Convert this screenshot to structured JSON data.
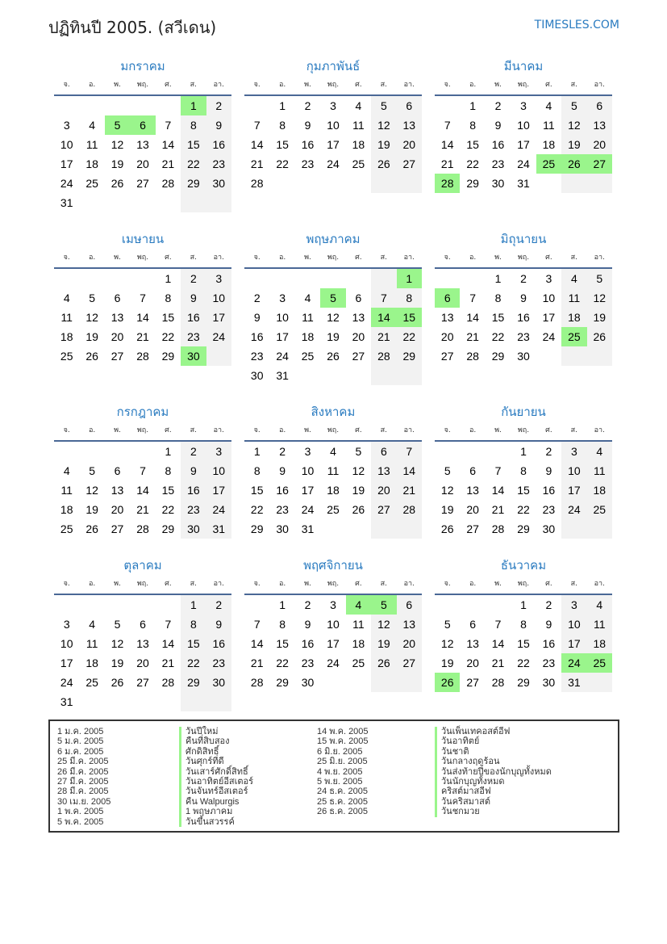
{
  "header": {
    "title": "ปฏิทินปี 2005. (สวีเดน)",
    "brand": "TIMESLES.COM"
  },
  "year": 2005,
  "weekdays": [
    "จ.",
    "อ.",
    "พ.",
    "พฤ.",
    "ศ.",
    "ส.",
    "อา."
  ],
  "months": [
    "มกราคม",
    "กุมภาพันธ์",
    "มีนาคม",
    "เมษายน",
    "พฤษภาคม",
    "มิถุนายน",
    "กรกฎาคม",
    "สิงหาคม",
    "กันยายน",
    "ตุลาคม",
    "พฤศจิกายน",
    "ธันวาคม"
  ],
  "colors": {
    "accent": "#2a7bc0",
    "holiday": "#9af58c",
    "weekend": "#f2f2f2"
  },
  "holiday_dates": [
    [
      1,
      1
    ],
    [
      1,
      5
    ],
    [
      1,
      6
    ],
    [
      3,
      25
    ],
    [
      3,
      26
    ],
    [
      3,
      27
    ],
    [
      3,
      28
    ],
    [
      4,
      30
    ],
    [
      5,
      1
    ],
    [
      5,
      5
    ],
    [
      5,
      14
    ],
    [
      5,
      15
    ],
    [
      6,
      6
    ],
    [
      6,
      25
    ],
    [
      11,
      4
    ],
    [
      11,
      5
    ],
    [
      12,
      24
    ],
    [
      12,
      25
    ],
    [
      12,
      26
    ]
  ],
  "holidays": [
    {
      "date": "1 ม.ค. 2005",
      "name": "วันปีใหม่"
    },
    {
      "date": "5 ม.ค. 2005",
      "name": "คืนที่สิบสอง"
    },
    {
      "date": "6 ม.ค. 2005",
      "name": "ศักดิสิทธิ์"
    },
    {
      "date": "25 มี.ค. 2005",
      "name": "วันศุกร์ที่ดี"
    },
    {
      "date": "26 มี.ค. 2005",
      "name": "วันเสาร์ศักดิ์สิทธิ์"
    },
    {
      "date": "27 มี.ค. 2005",
      "name": "วันอาทิตย์อีสเตอร์"
    },
    {
      "date": "28 มี.ค. 2005",
      "name": "วันจันทร์อีสเตอร์"
    },
    {
      "date": "30 เม.ย. 2005",
      "name": "คืน Walpurgis"
    },
    {
      "date": "1 พ.ค. 2005",
      "name": "1 พฤษภาคม"
    },
    {
      "date": "5 พ.ค. 2005",
      "name": "วันขึ้นสวรรค์"
    },
    {
      "date": "14 พ.ค. 2005",
      "name": "วันเพ็นเทคอสต์อีฟ"
    },
    {
      "date": "15 พ.ค. 2005",
      "name": "วันอาทิตย์"
    },
    {
      "date": "6 มิ.ย. 2005",
      "name": "วันชาติ"
    },
    {
      "date": "25 มิ.ย. 2005",
      "name": "วันกลางฤดูร้อน"
    },
    {
      "date": "4 พ.ย. 2005",
      "name": "วันส่งท้ายปีของนักบุญทั้งหมด"
    },
    {
      "date": "5 พ.ย. 2005",
      "name": "วันนักบุญทั้งหมด"
    },
    {
      "date": "24 ธ.ค. 2005",
      "name": "คริสต์มาสอีฟ"
    },
    {
      "date": "25 ธ.ค. 2005",
      "name": "วันคริสมาสต์"
    },
    {
      "date": "26 ธ.ค. 2005",
      "name": "วันชกมวย"
    }
  ]
}
